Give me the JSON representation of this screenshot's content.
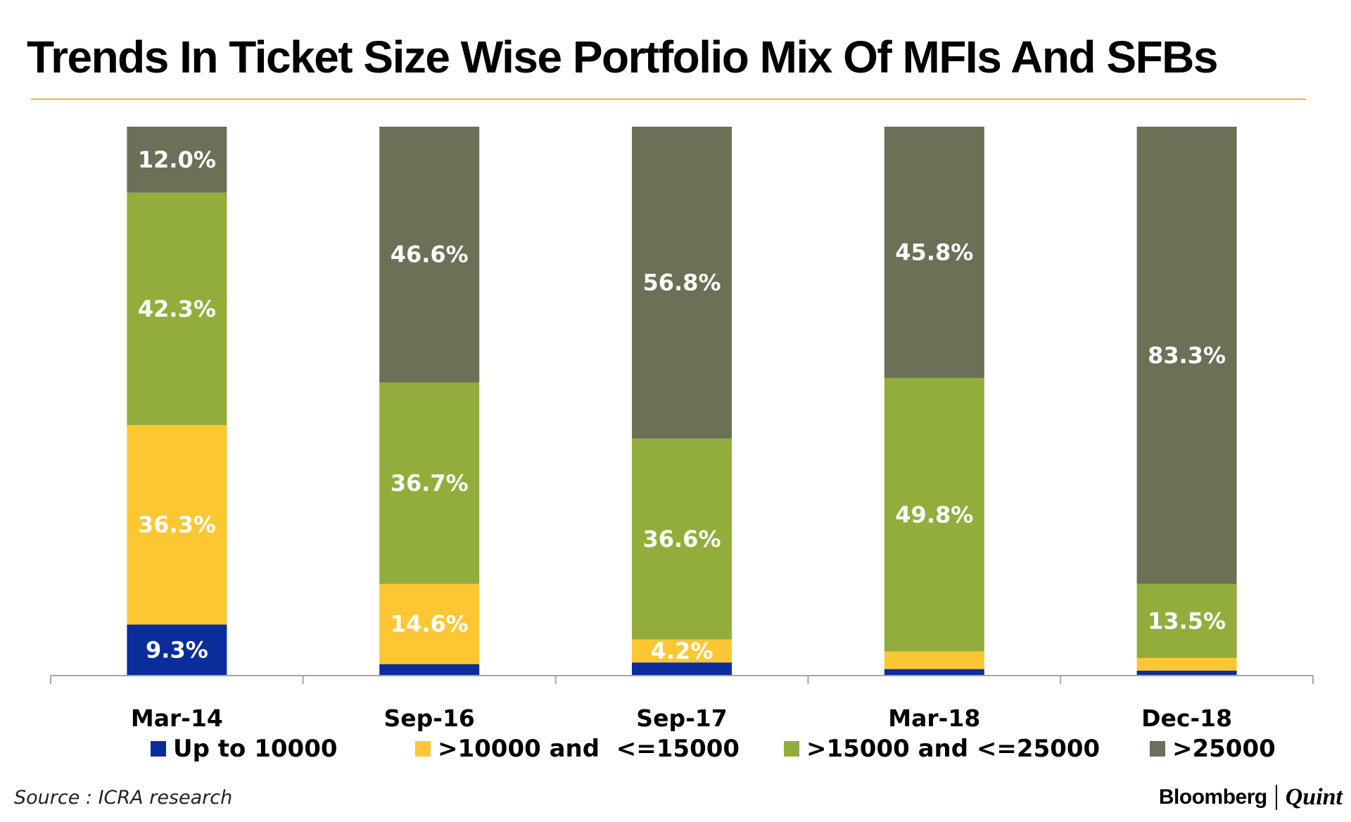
{
  "chart_data": {
    "type": "bar",
    "stacked": true,
    "title": "Trends In Ticket Size Wise Portfolio Mix Of MFIs And SFBs",
    "categories": [
      "Mar-14",
      "Sep-16",
      "Sep-17",
      "Mar-18",
      "Dec-18"
    ],
    "series": [
      {
        "name": "Up to 10000",
        "color": "#0b2d9c",
        "values": [
          9.3,
          2.1,
          2.4,
          1.2,
          0.9
        ],
        "labels": [
          "9.3%",
          "",
          "",
          "",
          ""
        ]
      },
      {
        "name": ">10000 and  <=15000",
        "color": "#fcc733",
        "values": [
          36.3,
          14.6,
          4.2,
          3.2,
          2.3
        ],
        "labels": [
          "36.3%",
          "14.6%",
          "4.2%",
          "",
          ""
        ]
      },
      {
        "name": ">15000 and <=25000",
        "color": "#93ad3c",
        "values": [
          42.3,
          36.7,
          36.6,
          49.8,
          13.5
        ],
        "labels": [
          "42.3%",
          "36.7%",
          "36.6%",
          "49.8%",
          "13.5%"
        ]
      },
      {
        "name": ">25000",
        "color": "#6b7056",
        "values": [
          12.0,
          46.6,
          56.8,
          45.8,
          83.3
        ],
        "labels": [
          "12.0%",
          "46.6%",
          "56.8%",
          "45.8%",
          "83.3%"
        ]
      }
    ],
    "ylim": [
      0,
      100
    ],
    "xlabel": "",
    "ylabel": "",
    "legend": "bottom",
    "grid": false
  },
  "source": "Source : ICRA research",
  "brand": {
    "left": "Bloomberg",
    "right": "Quint"
  }
}
